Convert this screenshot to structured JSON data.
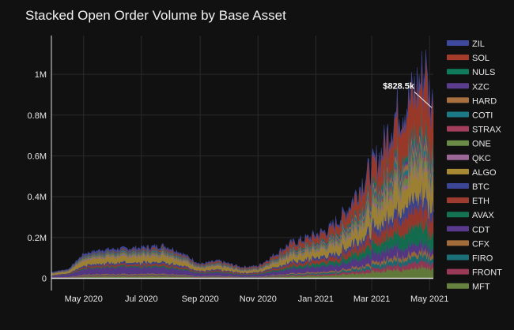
{
  "chart_data": {
    "type": "area",
    "stacked": true,
    "title": "Stacked Open Order Volume by Base Asset",
    "xlabel": "",
    "ylabel": "",
    "x_start": "2020-03-28",
    "x_end": "2021-05-05",
    "x_ticks": [
      {
        "date": "2020-05-01",
        "label": "May 2020"
      },
      {
        "date": "2020-07-01",
        "label": "Jul 2020"
      },
      {
        "date": "2020-09-01",
        "label": "Sep 2020"
      },
      {
        "date": "2020-11-01",
        "label": "Nov 2020"
      },
      {
        "date": "2021-01-01",
        "label": "Jan 2021"
      },
      {
        "date": "2021-03-01",
        "label": "Mar 2021"
      },
      {
        "date": "2021-05-01",
        "label": "May 2021"
      }
    ],
    "ylim": [
      -60000,
      1190000
    ],
    "y_ticks": [
      {
        "value": 0,
        "label": "0"
      },
      {
        "value": 200000,
        "label": "0.2M"
      },
      {
        "value": 400000,
        "label": "0.4M"
      },
      {
        "value": 600000,
        "label": "0.6M"
      },
      {
        "value": 800000,
        "label": "0.8M"
      },
      {
        "value": 1000000,
        "label": "1M"
      }
    ],
    "total_profile": [
      {
        "date": "2020-03-28",
        "value": 30000
      },
      {
        "date": "2020-04-15",
        "value": 45000
      },
      {
        "date": "2020-05-01",
        "value": 120000
      },
      {
        "date": "2020-05-20",
        "value": 140000
      },
      {
        "date": "2020-06-10",
        "value": 145000
      },
      {
        "date": "2020-07-01",
        "value": 150000
      },
      {
        "date": "2020-07-25",
        "value": 160000
      },
      {
        "date": "2020-08-10",
        "value": 130000
      },
      {
        "date": "2020-09-01",
        "value": 70000
      },
      {
        "date": "2020-09-20",
        "value": 85000
      },
      {
        "date": "2020-10-15",
        "value": 55000
      },
      {
        "date": "2020-11-01",
        "value": 60000
      },
      {
        "date": "2020-11-20",
        "value": 120000
      },
      {
        "date": "2020-12-05",
        "value": 170000
      },
      {
        "date": "2020-12-25",
        "value": 200000
      },
      {
        "date": "2021-01-15",
        "value": 240000
      },
      {
        "date": "2021-02-01",
        "value": 320000
      },
      {
        "date": "2021-02-20",
        "value": 480000
      },
      {
        "date": "2021-03-10",
        "value": 600000
      },
      {
        "date": "2021-03-25",
        "value": 800000
      },
      {
        "date": "2021-04-10",
        "value": 870000
      },
      {
        "date": "2021-04-25",
        "value": 1000000
      },
      {
        "date": "2021-05-05",
        "value": 828500
      }
    ],
    "peak": {
      "date": "2021-04-27",
      "value": 1120000
    },
    "series": [
      {
        "name": "ZIL",
        "color": "#3f4a9e",
        "share": [
          0.06,
          0.02
        ]
      },
      {
        "name": "SOL",
        "color": "#a33c2b",
        "share": [
          0.01,
          0.24
        ]
      },
      {
        "name": "NULS",
        "color": "#0f7a5c",
        "share": [
          0.02,
          0.03
        ]
      },
      {
        "name": "XZC",
        "color": "#5c3c8e",
        "share": [
          0.02,
          0.02
        ]
      },
      {
        "name": "HARD",
        "color": "#a8703e",
        "share": [
          0.01,
          0.03
        ]
      },
      {
        "name": "COTI",
        "color": "#1c7a86",
        "share": [
          0.03,
          0.03
        ]
      },
      {
        "name": "STRAX",
        "color": "#a33f5c",
        "share": [
          0.02,
          0.02
        ]
      },
      {
        "name": "ONE",
        "color": "#6a8c46",
        "share": [
          0.05,
          0.04
        ]
      },
      {
        "name": "QKC",
        "color": "#9a6796",
        "share": [
          0.04,
          0.02
        ]
      },
      {
        "name": "ALGO",
        "color": "#a88a35",
        "share": [
          0.2,
          0.12
        ]
      },
      {
        "name": "BTC",
        "color": "#3d4694",
        "share": [
          0.06,
          0.06
        ]
      },
      {
        "name": "ETH",
        "color": "#9e3b30",
        "share": [
          0.06,
          0.09
        ]
      },
      {
        "name": "AVAX",
        "color": "#137352",
        "share": [
          0.03,
          0.09
        ]
      },
      {
        "name": "CDT",
        "color": "#59398b",
        "share": [
          0.24,
          0.03
        ]
      },
      {
        "name": "CFX",
        "color": "#a26d3b",
        "share": [
          0.03,
          0.02
        ]
      },
      {
        "name": "FIRO",
        "color": "#1b6f78",
        "share": [
          0.02,
          0.03
        ]
      },
      {
        "name": "FRONT",
        "color": "#9a3a58",
        "share": [
          0.03,
          0.03
        ]
      },
      {
        "name": "MFT",
        "color": "#67823f",
        "share": [
          0.07,
          0.05
        ]
      }
    ],
    "annotation": {
      "text": "$828.5k",
      "date": "2021-05-05",
      "value": 828500
    },
    "legend_position": "right",
    "grid": true
  }
}
